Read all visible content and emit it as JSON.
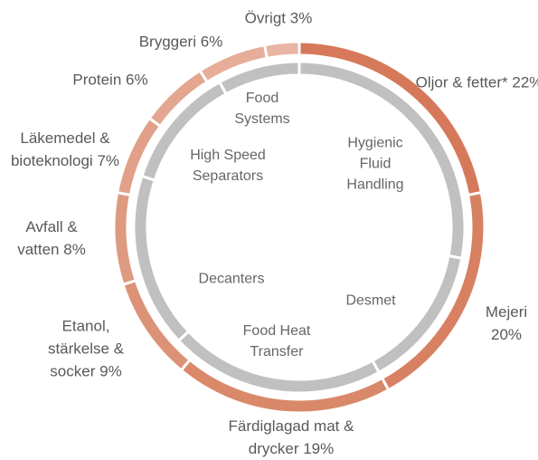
{
  "chart_data": {
    "type": "donut",
    "categories": [
      "Oljor & fetter*",
      "Mejeri",
      "Färdiglagad mat & drycker",
      "Etanol, stärkelse & socker",
      "Avfall & vatten",
      "Läkemedel & bioteknologi",
      "Protein",
      "Bryggeri",
      "Övrigt"
    ],
    "values": [
      22,
      20,
      19,
      9,
      8,
      7,
      6,
      6,
      3
    ],
    "value_labels": [
      "22%",
      "20%",
      "19%",
      "9%",
      "8%",
      "7%",
      "6%",
      "6%",
      "3%"
    ],
    "colors": [
      "#d6795b",
      "#d88162",
      "#d98969",
      "#dc9277",
      "#de9a81",
      "#e1a08a",
      "#e3a690",
      "#e6ad99",
      "#e8b4a3"
    ],
    "inner": {
      "categories": [
        "Hygienic Fluid Handling",
        "Desmet",
        "Food Heat Transfer",
        "Decanters",
        "High Speed Separators",
        "Food Systems"
      ],
      "values": [
        28,
        14,
        21,
        17,
        12,
        8
      ],
      "color": "#c0c0c0"
    }
  }
}
